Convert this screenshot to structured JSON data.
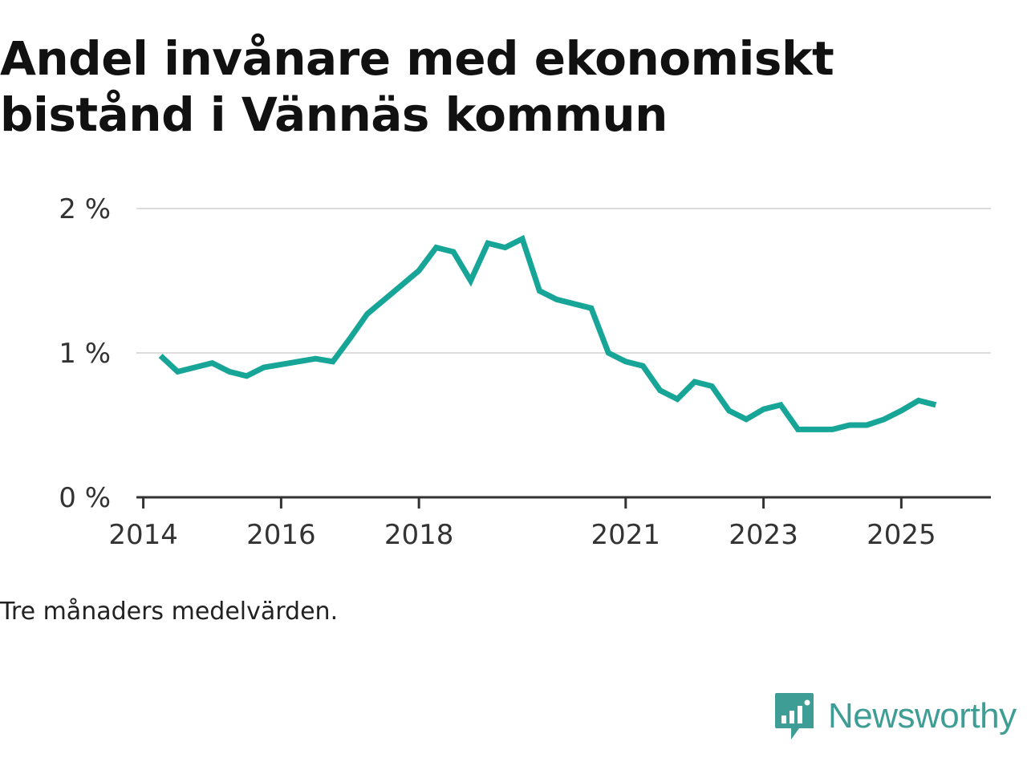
{
  "title": "Andel invånare med ekonomiskt bistånd i Vännäs kommun",
  "note": "Tre månaders medelvärden.",
  "brand": "Newsworthy",
  "colors": {
    "line": "#17a598",
    "grid": "#dddddd",
    "axis": "#333333",
    "brand": "#3e9d94"
  },
  "chart_data": {
    "type": "line",
    "title": "Andel invånare med ekonomiskt bistånd i Vännäs kommun",
    "xlabel": "",
    "ylabel": "",
    "xlim": [
      2013.9,
      2026.3
    ],
    "ylim": [
      0,
      2
    ],
    "x_ticks": [
      2014,
      2016,
      2018,
      2021,
      2023,
      2025
    ],
    "x_tick_labels": [
      "2014",
      "2016",
      "2018",
      "2021",
      "2023",
      "2025"
    ],
    "y_ticks": [
      0,
      1,
      2
    ],
    "y_tick_labels": [
      "0 %",
      "1 %",
      "2 %"
    ],
    "grid": true,
    "series": [
      {
        "name": "Andel invånare med ekonomiskt bistånd",
        "x": [
          2014.25,
          2014.5,
          2014.75,
          2015.0,
          2015.25,
          2015.5,
          2015.75,
          2016.0,
          2016.25,
          2016.5,
          2016.75,
          2017.0,
          2017.25,
          2017.5,
          2017.75,
          2018.0,
          2018.25,
          2018.5,
          2018.75,
          2019.0,
          2019.25,
          2019.5,
          2019.75,
          2020.0,
          2020.25,
          2020.5,
          2020.75,
          2021.0,
          2021.25,
          2021.5,
          2021.75,
          2022.0,
          2022.25,
          2022.5,
          2022.75,
          2023.0,
          2023.25,
          2023.5,
          2023.75,
          2024.0,
          2024.25,
          2024.5,
          2024.75,
          2025.0,
          2025.25,
          2025.5
        ],
        "values": [
          0.98,
          0.87,
          0.9,
          0.93,
          0.87,
          0.84,
          0.9,
          0.92,
          0.94,
          0.96,
          0.94,
          1.1,
          1.27,
          1.37,
          1.47,
          1.57,
          1.73,
          1.7,
          1.5,
          1.76,
          1.73,
          1.79,
          1.43,
          1.37,
          1.34,
          1.31,
          1.0,
          0.94,
          0.91,
          0.74,
          0.68,
          0.8,
          0.77,
          0.6,
          0.54,
          0.61,
          0.64,
          0.47,
          0.47,
          0.47,
          0.5,
          0.5,
          0.54,
          0.6,
          0.67,
          0.64
        ]
      }
    ]
  }
}
